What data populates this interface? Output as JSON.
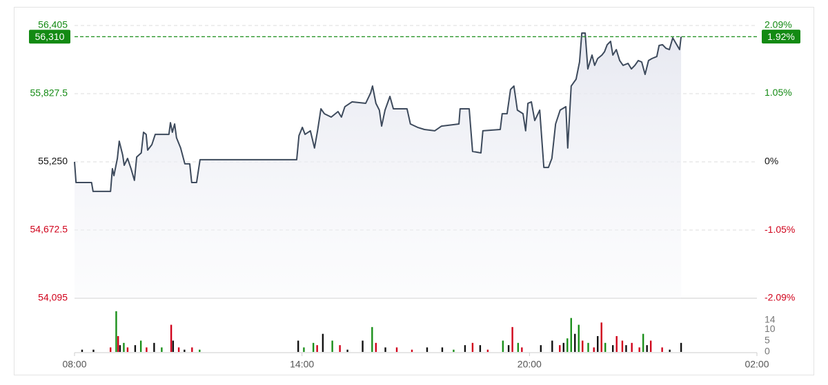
{
  "chart_data": [
    {
      "type": "line",
      "x": [
        8.0,
        8.04,
        8.45,
        8.49,
        8.95,
        9.0,
        9.04,
        9.13,
        9.18,
        9.27,
        9.31,
        9.4,
        9.49,
        9.58,
        9.64,
        9.76,
        9.82,
        9.89,
        9.93,
        10.04,
        10.13,
        10.31,
        10.49,
        10.53,
        10.58,
        10.64,
        10.69,
        10.8,
        10.91,
        11.04,
        11.09,
        11.22,
        11.31,
        13.86,
        13.92,
        14.01,
        14.08,
        14.22,
        14.33,
        14.41,
        14.5,
        14.59,
        14.77,
        14.95,
        15.04,
        15.13,
        15.32,
        15.68,
        15.81,
        15.86,
        15.95,
        16.04,
        16.1,
        16.19,
        16.32,
        16.41,
        16.77,
        16.86,
        17.05,
        17.23,
        17.5,
        17.68,
        18.14,
        18.17,
        18.41,
        18.5,
        18.72,
        18.77,
        19.23,
        19.28,
        19.41,
        19.5,
        19.59,
        19.68,
        19.83,
        19.9,
        19.96,
        20.05,
        20.14,
        20.27,
        20.38,
        20.5,
        20.59,
        20.69,
        20.81,
        20.96,
        21.01,
        21.1,
        21.23,
        21.32,
        21.38,
        21.47,
        21.54,
        21.65,
        21.72,
        21.8,
        21.91,
        21.98,
        22.05,
        22.14,
        22.2,
        22.29,
        22.38,
        22.47,
        22.6,
        22.69,
        22.78,
        22.87,
        22.96,
        23.05,
        23.14,
        23.23,
        23.36,
        23.42,
        23.51,
        23.6,
        23.69,
        23.78,
        23.96,
        24.0
      ],
      "series": [
        {
          "color": "#3d4a5c",
          "values": [
            55250,
            55075,
            55075,
            55000,
            55000,
            55192,
            55133,
            55279,
            55425,
            55308,
            55221,
            55279,
            55192,
            55093,
            55291,
            55326,
            55501,
            55483,
            55349,
            55396,
            55483,
            55483,
            55483,
            55582,
            55501,
            55571,
            55454,
            55367,
            55233,
            55233,
            55075,
            55075,
            55268,
            55268,
            55472,
            55542,
            55483,
            55513,
            55367,
            55513,
            55699,
            55658,
            55629,
            55676,
            55629,
            55717,
            55758,
            55746,
            55833,
            55892,
            55746,
            55688,
            55553,
            55688,
            55804,
            55699,
            55699,
            55571,
            55542,
            55524,
            55513,
            55553,
            55571,
            55699,
            55699,
            55338,
            55326,
            55513,
            55524,
            55658,
            55658,
            55863,
            55892,
            55688,
            55658,
            55513,
            55746,
            55758,
            55600,
            55688,
            55203,
            55203,
            55279,
            55571,
            55688,
            55717,
            55367,
            55892,
            55950,
            56096,
            56341,
            56341,
            56037,
            56154,
            56067,
            56125,
            56154,
            56183,
            56242,
            56271,
            56154,
            56201,
            56108,
            56067,
            56084,
            56037,
            56067,
            56108,
            56096,
            55991,
            56108,
            56125,
            56142,
            56236,
            56242,
            56212,
            56201,
            56300,
            56201,
            56310
          ]
        }
      ],
      "xlim": [
        8,
        26
      ],
      "ylim": [
        54095,
        56405
      ],
      "yticks": [
        {
          "value": 54095,
          "label": "54,095"
        },
        {
          "value": 54672.5,
          "label": "54,672.5"
        },
        {
          "value": 55250,
          "label": "55,250"
        },
        {
          "value": 55827.5,
          "label": "55,827.5"
        },
        {
          "value": 56405,
          "label": "56,405"
        }
      ],
      "y2lim": [
        -2.09,
        2.09
      ],
      "y2ticks": [
        {
          "value": -2.09,
          "label": "-2.09%"
        },
        {
          "value": -1.05,
          "label": "-1.05%"
        },
        {
          "value": 0,
          "label": "0%"
        },
        {
          "value": 1.05,
          "label": "1.05%"
        },
        {
          "value": 2.09,
          "label": "2.09%"
        }
      ],
      "base": 55250,
      "up_color": "#138a13",
      "down_color": "#d0021b",
      "last_price": {
        "value": 56310,
        "label": "56,310"
      },
      "last_change": {
        "value": 1.92,
        "label": "1.92%"
      },
      "grid": true
    },
    {
      "type": "bar",
      "x": [
        8.2,
        8.5,
        8.95,
        9.1,
        9.15,
        9.2,
        9.3,
        9.4,
        9.6,
        9.75,
        9.9,
        10.1,
        10.3,
        10.55,
        10.6,
        10.75,
        10.9,
        11.1,
        11.3,
        13.9,
        14.05,
        14.3,
        14.4,
        14.55,
        14.8,
        15.0,
        15.2,
        15.6,
        15.85,
        15.95,
        16.2,
        16.5,
        16.9,
        17.3,
        17.7,
        18.0,
        18.3,
        18.5,
        18.7,
        18.9,
        19.3,
        19.45,
        19.55,
        19.7,
        19.8,
        20.3,
        20.6,
        20.8,
        20.9,
        21.0,
        21.1,
        21.2,
        21.3,
        21.4,
        21.55,
        21.7,
        21.8,
        21.9,
        22.0,
        22.2,
        22.3,
        22.45,
        22.55,
        22.7,
        22.9,
        23.0,
        23.1,
        23.2,
        23.5,
        23.7,
        24.0
      ],
      "values": [
        1,
        1,
        2,
        18,
        7,
        3,
        4,
        2,
        3,
        5,
        2,
        4,
        2,
        12,
        5,
        2,
        1,
        2,
        1,
        5,
        2,
        4,
        3,
        8,
        5,
        3,
        1,
        5,
        11,
        4,
        2,
        2,
        1,
        2,
        2,
        1,
        3,
        4,
        3,
        1,
        5,
        3,
        11,
        4,
        2,
        3,
        5,
        3,
        4,
        6,
        15,
        8,
        12,
        5,
        4,
        2,
        7,
        13,
        4,
        3,
        7,
        5,
        3,
        4,
        2,
        8,
        3,
        5,
        2,
        1,
        4
      ],
      "colors": [
        "#111",
        "#111",
        "#d0021b",
        "#1a8f1a",
        "#d0021b",
        "#111",
        "#1a8f1a",
        "#d0021b",
        "#111",
        "#1a8f1a",
        "#d0021b",
        "#111",
        "#1a8f1a",
        "#d0021b",
        "#111",
        "#d0021b",
        "#111",
        "#d0021b",
        "#1a8f1a",
        "#111",
        "#1a8f1a",
        "#1a8f1a",
        "#d0021b",
        "#111",
        "#1a8f1a",
        "#d0021b",
        "#111",
        "#111",
        "#1a8f1a",
        "#d0021b",
        "#111",
        "#d0021b",
        "#d0021b",
        "#111",
        "#111",
        "#1a8f1a",
        "#111",
        "#d0021b",
        "#111",
        "#d0021b",
        "#1a8f1a",
        "#111",
        "#d0021b",
        "#1a8f1a",
        "#d0021b",
        "#111",
        "#111",
        "#d0021b",
        "#111",
        "#1a8f1a",
        "#1a8f1a",
        "#111",
        "#1a8f1a",
        "#d0021b",
        "#1a8f1a",
        "#d0021b",
        "#111",
        "#d0021b",
        "#1a8f1a",
        "#111",
        "#d0021b",
        "#d0021b",
        "#111",
        "#d0021b",
        "#d0021b",
        "#1a8f1a",
        "#111",
        "#d0021b",
        "#d0021b",
        "#111",
        "#111"
      ],
      "xlim": [
        8,
        26
      ],
      "xticks": [
        {
          "value": 8,
          "label": "08:00"
        },
        {
          "value": 14,
          "label": "14:00"
        },
        {
          "value": 20,
          "label": "20:00"
        },
        {
          "value": 26,
          "label": "02:00"
        }
      ],
      "ylim": [
        0,
        21
      ],
      "yticks": [
        0,
        5,
        10,
        14
      ]
    }
  ]
}
